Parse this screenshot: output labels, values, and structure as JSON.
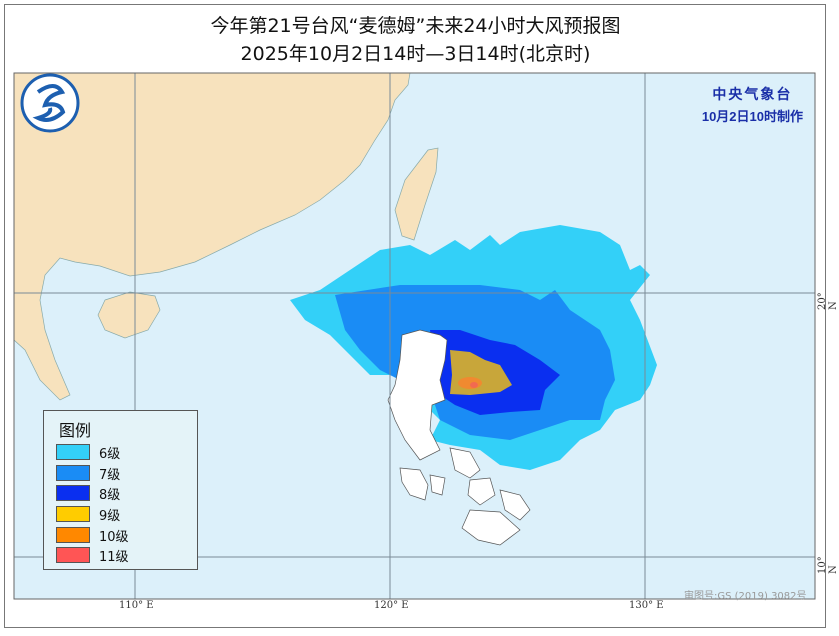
{
  "title": "今年第21号台风“麦德姆”未来24小时大风预报图",
  "subtitle": "2025年10月2日14时—3日14时(北京时)",
  "agency": {
    "name": "中央气象台",
    "issued": "10月2日10时制作"
  },
  "legend": {
    "title": "图例",
    "items": [
      {
        "label": "6级",
        "color": "#33d0f8"
      },
      {
        "label": "7级",
        "color": "#1a8cf5"
      },
      {
        "label": "8级",
        "color": "#0a2ff0"
      },
      {
        "label": "9级",
        "color": "#ffcc00"
      },
      {
        "label": "10级",
        "color": "#ff8800"
      },
      {
        "label": "11级",
        "color": "#ff5555"
      }
    ]
  },
  "axes": {
    "lon": [
      "110° E",
      "120° E",
      "130° E"
    ],
    "lat": [
      "20° N",
      "10° N"
    ]
  },
  "credit": "审图号:GS (2019) 3082号",
  "colors": {
    "sea": "#dcf0fa",
    "land": "#f7e2bd",
    "philippines": "#ffffff",
    "gold_zone": "#c8a63a"
  }
}
